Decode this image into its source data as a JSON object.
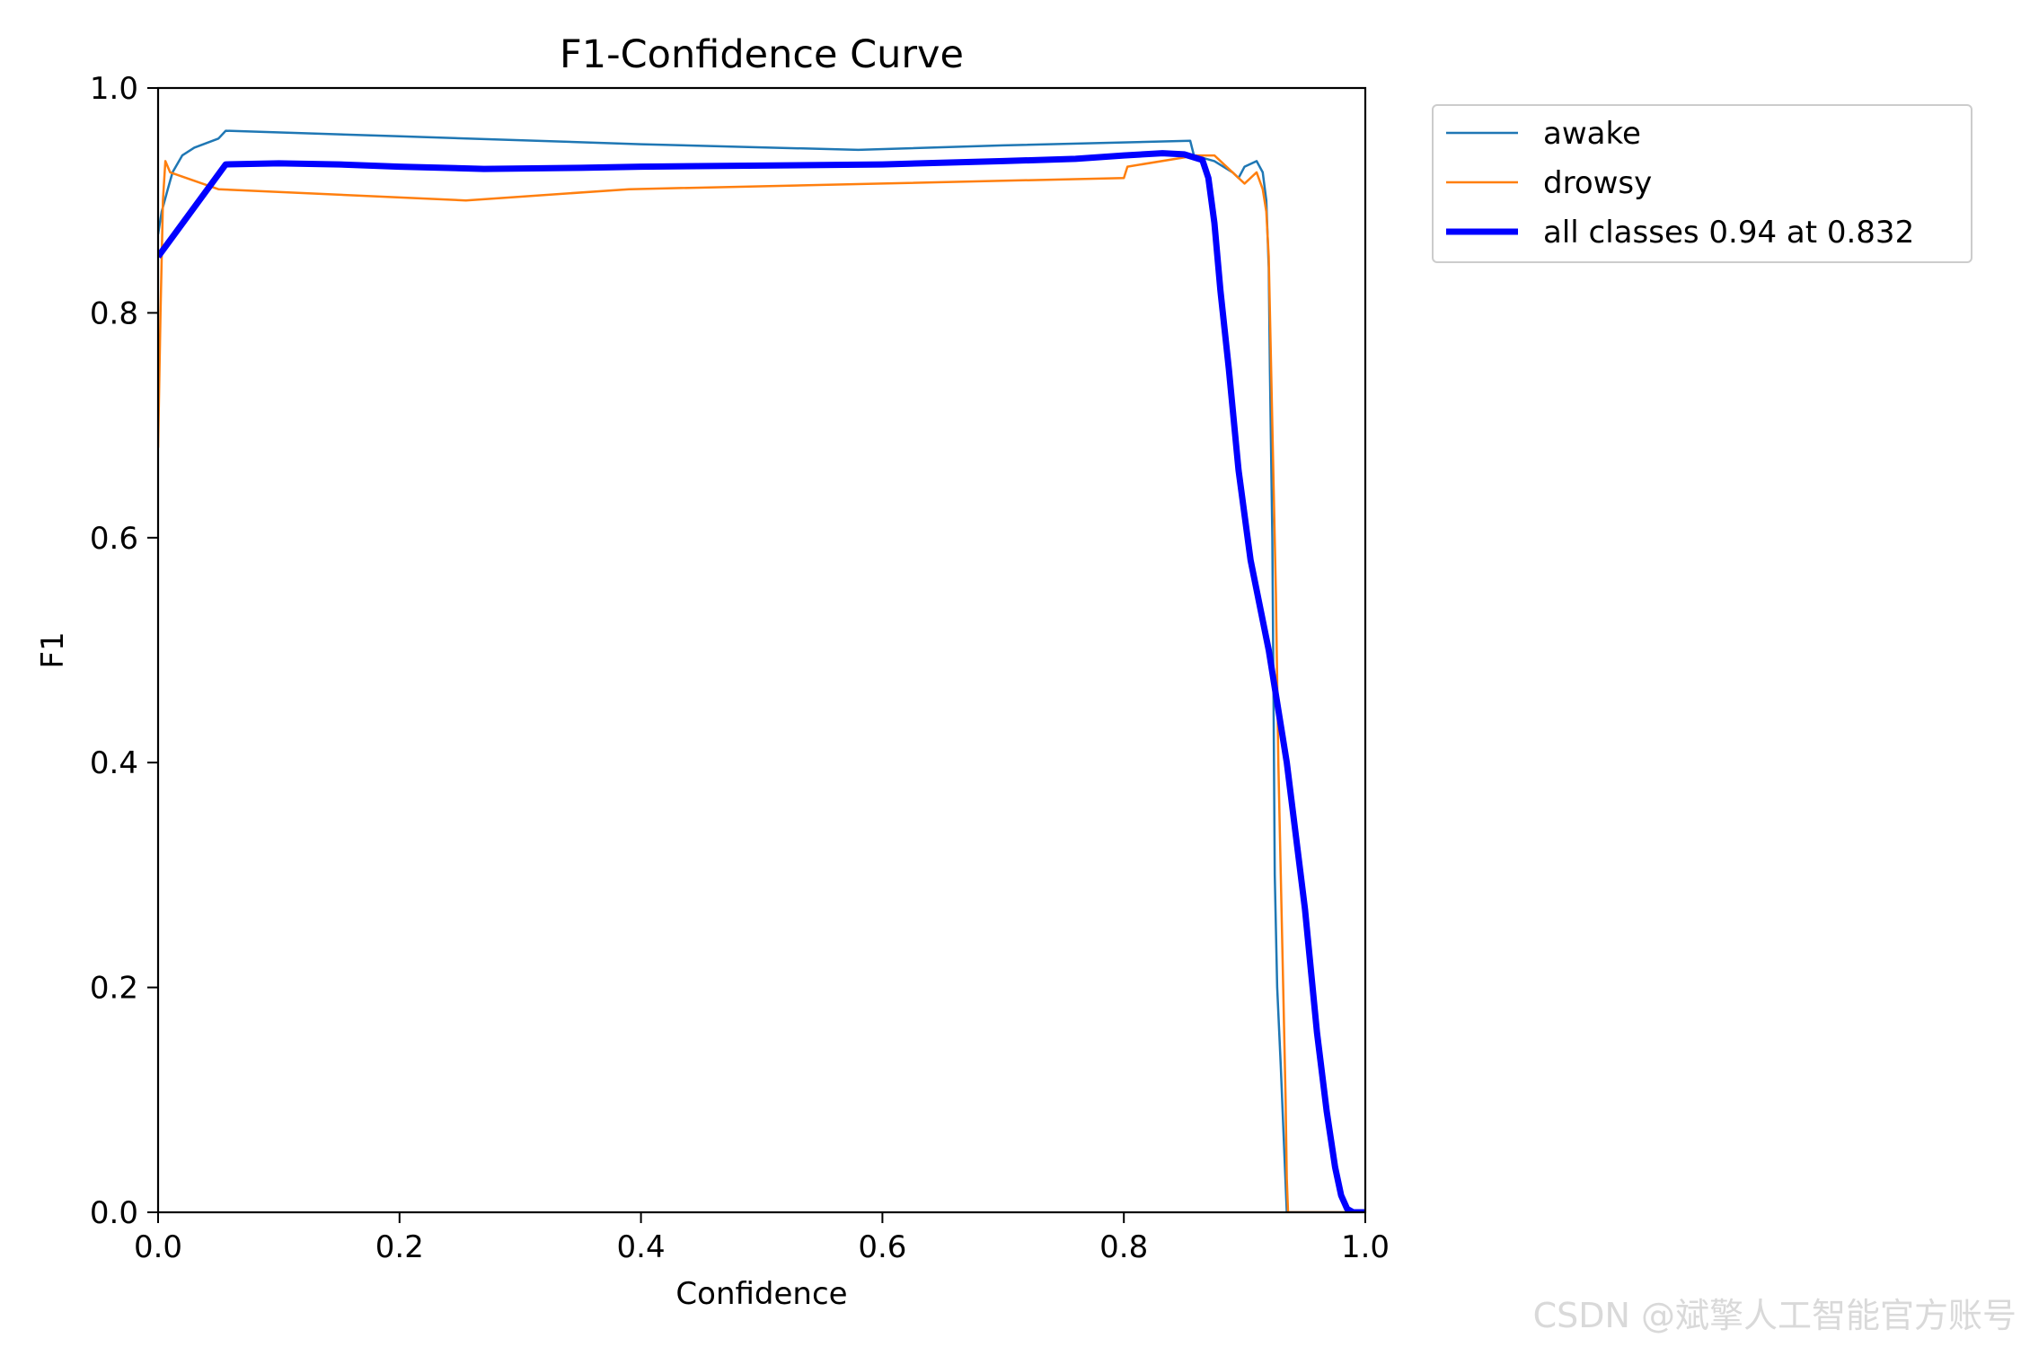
{
  "chart_data": {
    "type": "line",
    "title": "F1-Confidence Curve",
    "xlabel": "Confidence",
    "ylabel": "F1",
    "xlim": [
      0,
      1
    ],
    "ylim": [
      0,
      1
    ],
    "xticks": [
      "0.0",
      "0.2",
      "0.4",
      "0.6",
      "0.8",
      "1.0"
    ],
    "yticks": [
      "0.0",
      "0.2",
      "0.4",
      "0.6",
      "0.8",
      "1.0"
    ],
    "grid": false,
    "legend_position": "outside-top-right",
    "series": [
      {
        "name": "awake",
        "color": "#1f77b4",
        "width": 2.5,
        "points": [
          [
            0.0,
            0.87
          ],
          [
            0.003,
            0.89
          ],
          [
            0.008,
            0.91
          ],
          [
            0.012,
            0.925
          ],
          [
            0.02,
            0.94
          ],
          [
            0.03,
            0.947
          ],
          [
            0.05,
            0.955
          ],
          [
            0.056,
            0.962
          ],
          [
            0.2,
            0.957
          ],
          [
            0.4,
            0.95
          ],
          [
            0.58,
            0.945
          ],
          [
            0.7,
            0.949
          ],
          [
            0.855,
            0.953
          ],
          [
            0.858,
            0.94
          ],
          [
            0.875,
            0.935
          ],
          [
            0.89,
            0.925
          ],
          [
            0.895,
            0.92
          ],
          [
            0.9,
            0.93
          ],
          [
            0.91,
            0.935
          ],
          [
            0.915,
            0.925
          ],
          [
            0.918,
            0.9
          ],
          [
            0.92,
            0.84
          ],
          [
            0.921,
            0.75
          ],
          [
            0.923,
            0.6
          ],
          [
            0.924,
            0.45
          ],
          [
            0.925,
            0.3
          ],
          [
            0.927,
            0.2
          ],
          [
            0.93,
            0.13
          ],
          [
            0.933,
            0.05
          ],
          [
            0.935,
            0.0
          ],
          [
            1.0,
            0.0
          ]
        ]
      },
      {
        "name": "drowsy",
        "color": "#ff7f0e",
        "width": 2.5,
        "points": [
          [
            0.0,
            0.68
          ],
          [
            0.002,
            0.8
          ],
          [
            0.004,
            0.9
          ],
          [
            0.006,
            0.935
          ],
          [
            0.01,
            0.925
          ],
          [
            0.05,
            0.91
          ],
          [
            0.255,
            0.9
          ],
          [
            0.39,
            0.91
          ],
          [
            0.6,
            0.915
          ],
          [
            0.8,
            0.92
          ],
          [
            0.803,
            0.93
          ],
          [
            0.86,
            0.94
          ],
          [
            0.875,
            0.94
          ],
          [
            0.885,
            0.93
          ],
          [
            0.9,
            0.915
          ],
          [
            0.91,
            0.925
          ],
          [
            0.915,
            0.91
          ],
          [
            0.918,
            0.89
          ],
          [
            0.92,
            0.85
          ],
          [
            0.923,
            0.7
          ],
          [
            0.926,
            0.55
          ],
          [
            0.928,
            0.4
          ],
          [
            0.93,
            0.3
          ],
          [
            0.932,
            0.2
          ],
          [
            0.934,
            0.1
          ],
          [
            0.935,
            0.03
          ],
          [
            0.936,
            0.0
          ],
          [
            1.0,
            0.0
          ]
        ]
      },
      {
        "name": "all classes 0.94 at 0.832",
        "color": "#0000ff",
        "width": 7,
        "points": [
          [
            0.0,
            0.85
          ],
          [
            0.056,
            0.932
          ],
          [
            0.1,
            0.933
          ],
          [
            0.15,
            0.932
          ],
          [
            0.2,
            0.93
          ],
          [
            0.27,
            0.928
          ],
          [
            0.35,
            0.929
          ],
          [
            0.4,
            0.93
          ],
          [
            0.5,
            0.931
          ],
          [
            0.6,
            0.932
          ],
          [
            0.7,
            0.935
          ],
          [
            0.76,
            0.937
          ],
          [
            0.8,
            0.94
          ],
          [
            0.832,
            0.942
          ],
          [
            0.85,
            0.941
          ],
          [
            0.865,
            0.936
          ],
          [
            0.87,
            0.92
          ],
          [
            0.875,
            0.88
          ],
          [
            0.88,
            0.82
          ],
          [
            0.887,
            0.75
          ],
          [
            0.895,
            0.66
          ],
          [
            0.905,
            0.58
          ],
          [
            0.92,
            0.5
          ],
          [
            0.935,
            0.4
          ],
          [
            0.95,
            0.27
          ],
          [
            0.96,
            0.16
          ],
          [
            0.968,
            0.09
          ],
          [
            0.975,
            0.04
          ],
          [
            0.98,
            0.015
          ],
          [
            0.985,
            0.003
          ],
          [
            0.99,
            0.0
          ],
          [
            1.0,
            0.0
          ]
        ]
      }
    ]
  },
  "watermark": "CSDN @斌擎人工智能官方账号"
}
